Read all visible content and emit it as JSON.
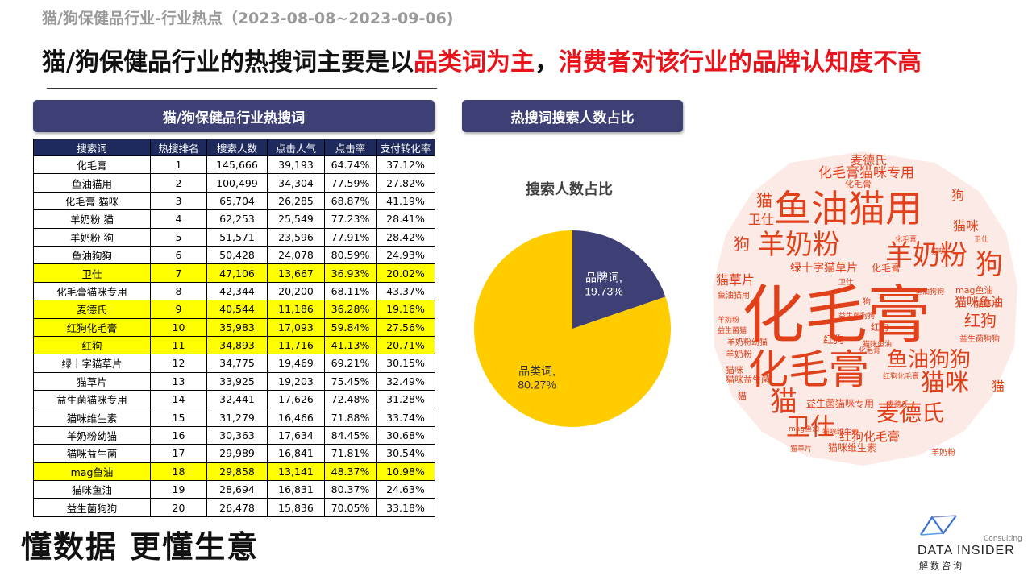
{
  "page": {
    "subtitle": "猫/狗保健品行业-行业热点（2023-08-08~2023-09-06)",
    "headline_black_1": "猫/狗保健品行业的热搜词主要是以",
    "headline_red_1": "品类词为主",
    "headline_black_2": "，",
    "headline_red_2": "消费者对该行业的品牌认知度不高",
    "slogan": "懂数据 更懂生意"
  },
  "logo": {
    "consulting": "Consulting",
    "name": "DATA INSIDER",
    "cn": "解数咨询"
  },
  "colors": {
    "panel_header": "#3d3f75",
    "table_header": "#1f2a5c",
    "highlight": "#ffff00",
    "accent_red": "#e8141c",
    "pie_brand": "#3d3f75",
    "pie_category": "#ffcc00",
    "cloud_text": "#e0401a",
    "cloud_bg": "#fbeae6"
  },
  "left_panel": {
    "title": "猫/狗保健品行业热搜词",
    "columns": [
      "搜索词",
      "热搜排名",
      "搜索人数",
      "点击人气",
      "点击率",
      "支付转化率"
    ],
    "rows": [
      {
        "term": "化毛膏",
        "rank": "1",
        "searchers": "145,666",
        "click_pop": "39,193",
        "ctr": "64.74%",
        "conv": "37.12%",
        "highlight": false
      },
      {
        "term": "鱼油猫用",
        "rank": "2",
        "searchers": "100,499",
        "click_pop": "34,304",
        "ctr": "77.59%",
        "conv": "27.82%",
        "highlight": false
      },
      {
        "term": "化毛膏 猫咪",
        "rank": "3",
        "searchers": "65,704",
        "click_pop": "26,285",
        "ctr": "68.87%",
        "conv": "41.19%",
        "highlight": false
      },
      {
        "term": "羊奶粉 猫",
        "rank": "4",
        "searchers": "62,253",
        "click_pop": "25,549",
        "ctr": "77.23%",
        "conv": "28.41%",
        "highlight": false
      },
      {
        "term": "羊奶粉 狗",
        "rank": "5",
        "searchers": "51,571",
        "click_pop": "23,596",
        "ctr": "77.91%",
        "conv": "28.42%",
        "highlight": false
      },
      {
        "term": "鱼油狗狗",
        "rank": "6",
        "searchers": "50,428",
        "click_pop": "24,078",
        "ctr": "80.59%",
        "conv": "24.93%",
        "highlight": false
      },
      {
        "term": "卫仕",
        "rank": "7",
        "searchers": "47,106",
        "click_pop": "13,667",
        "ctr": "36.93%",
        "conv": "20.02%",
        "highlight": true
      },
      {
        "term": "化毛膏猫咪专用",
        "rank": "8",
        "searchers": "42,344",
        "click_pop": "20,200",
        "ctr": "68.11%",
        "conv": "43.37%",
        "highlight": false
      },
      {
        "term": "麦德氏",
        "rank": "9",
        "searchers": "40,544",
        "click_pop": "11,186",
        "ctr": "36.28%",
        "conv": "19.16%",
        "highlight": true
      },
      {
        "term": "红狗化毛膏",
        "rank": "10",
        "searchers": "35,983",
        "click_pop": "17,093",
        "ctr": "59.84%",
        "conv": "27.56%",
        "highlight": true
      },
      {
        "term": "红狗",
        "rank": "11",
        "searchers": "34,893",
        "click_pop": "11,716",
        "ctr": "41.13%",
        "conv": "20.71%",
        "highlight": true
      },
      {
        "term": "绿十字猫草片",
        "rank": "12",
        "searchers": "34,775",
        "click_pop": "19,469",
        "ctr": "69.21%",
        "conv": "30.15%",
        "highlight": false
      },
      {
        "term": "猫草片",
        "rank": "13",
        "searchers": "33,925",
        "click_pop": "19,203",
        "ctr": "75.45%",
        "conv": "32.49%",
        "highlight": false
      },
      {
        "term": "益生菌猫咪专用",
        "rank": "14",
        "searchers": "32,441",
        "click_pop": "17,626",
        "ctr": "72.48%",
        "conv": "31.28%",
        "highlight": false
      },
      {
        "term": "猫咪维生素",
        "rank": "15",
        "searchers": "31,279",
        "click_pop": "16,466",
        "ctr": "71.88%",
        "conv": "33.74%",
        "highlight": false
      },
      {
        "term": "羊奶粉幼猫",
        "rank": "16",
        "searchers": "30,363",
        "click_pop": "17,634",
        "ctr": "84.45%",
        "conv": "30.68%",
        "highlight": false
      },
      {
        "term": "猫咪益生菌",
        "rank": "17",
        "searchers": "29,989",
        "click_pop": "16,841",
        "ctr": "71.81%",
        "conv": "30.54%",
        "highlight": false
      },
      {
        "term": "mag鱼油",
        "rank": "18",
        "searchers": "29,858",
        "click_pop": "13,141",
        "ctr": "48.37%",
        "conv": "10.98%",
        "highlight": true
      },
      {
        "term": "猫咪鱼油",
        "rank": "19",
        "searchers": "28,694",
        "click_pop": "16,831",
        "ctr": "80.37%",
        "conv": "24.63%",
        "highlight": false
      },
      {
        "term": "益生菌狗狗",
        "rank": "20",
        "searchers": "26,478",
        "click_pop": "15,836",
        "ctr": "70.05%",
        "conv": "33.18%",
        "highlight": false
      }
    ]
  },
  "middle_panel": {
    "title": "热搜词搜索人数占比"
  },
  "chart_data": {
    "type": "pie",
    "title": "搜索人数占比",
    "slices": [
      {
        "label": "品牌词,",
        "value": 19.73,
        "value_label": "19.73%",
        "color": "#3d3f75"
      },
      {
        "label": "品类词,",
        "value": 80.27,
        "value_label": "80.27%",
        "color": "#ffcc00"
      }
    ],
    "start_angle_deg": 0,
    "direction": "clockwise"
  },
  "word_cloud": {
    "words": [
      {
        "text": "化毛膏",
        "weight": 10
      },
      {
        "text": "鱼油猫用",
        "weight": 7
      },
      {
        "text": "化毛膏",
        "weight": 6
      },
      {
        "text": "羊奶粉",
        "weight": 5
      },
      {
        "text": "羊奶粉",
        "weight": 5
      },
      {
        "text": "鱼油狗狗",
        "weight": 4
      },
      {
        "text": "猫咪",
        "weight": 4
      },
      {
        "text": "麦德氏",
        "weight": 4
      },
      {
        "text": "卫仕",
        "weight": 4
      },
      {
        "text": "狗",
        "weight": 4
      },
      {
        "text": "猫",
        "weight": 4
      },
      {
        "text": "猫",
        "weight": 3
      },
      {
        "text": "红狗",
        "weight": 3
      },
      {
        "text": "狗",
        "weight": 3
      },
      {
        "text": "化毛膏猫咪专用",
        "weight": 2
      },
      {
        "text": "红狗化毛膏",
        "weight": 2
      },
      {
        "text": "绿十字猫草片",
        "weight": 2
      },
      {
        "text": "猫咪维生素",
        "weight": 2
      },
      {
        "text": "益生菌猫咪专用",
        "weight": 2
      },
      {
        "text": "化毛膏",
        "weight": 2
      },
      {
        "text": "猫草片",
        "weight": 2
      },
      {
        "text": "麦德氏",
        "weight": 2
      },
      {
        "text": "猫咪鱼油",
        "weight": 2
      },
      {
        "text": "卫仕",
        "weight": 2
      },
      {
        "text": "猫",
        "weight": 2
      },
      {
        "text": "狗",
        "weight": 2
      },
      {
        "text": "猫咪",
        "weight": 2
      },
      {
        "text": "红狗",
        "weight": 2
      },
      {
        "text": "mag鱼油",
        "weight": 1
      },
      {
        "text": "益生菌狗狗",
        "weight": 1
      },
      {
        "text": "羊奶粉",
        "weight": 1
      },
      {
        "text": "猫草片",
        "weight": 1
      },
      {
        "text": "鱼油猫用",
        "weight": 1
      },
      {
        "text": "羊奶粉幼猫",
        "weight": 1
      },
      {
        "text": "益生菌猫",
        "weight": 1
      },
      {
        "text": "猫咪益生菌",
        "weight": 1
      },
      {
        "text": "猫咪",
        "weight": 1
      },
      {
        "text": "化毛膏",
        "weight": 1
      },
      {
        "text": "化毛膏",
        "weight": 1
      },
      {
        "text": "红狗化毛膏",
        "weight": 1
      },
      {
        "text": "猫咪维生素",
        "weight": 1
      },
      {
        "text": "麦德氏",
        "weight": 1
      },
      {
        "text": "卫仕",
        "weight": 1
      },
      {
        "text": "mag鱼油",
        "weight": 1
      },
      {
        "text": "羊奶粉",
        "weight": 1
      },
      {
        "text": "猫草片",
        "weight": 1
      },
      {
        "text": "鱼油狗狗",
        "weight": 1
      },
      {
        "text": "猫咪",
        "weight": 1
      },
      {
        "text": "红狗",
        "weight": 1
      },
      {
        "text": "狗",
        "weight": 1
      },
      {
        "text": "卫仕",
        "weight": 1
      },
      {
        "text": "猫咪鱼油",
        "weight": 1
      },
      {
        "text": "羊奶粉",
        "weight": 1
      },
      {
        "text": "化毛膏",
        "weight": 1
      },
      {
        "text": "猫",
        "weight": 1
      },
      {
        "text": "益生菌狗狗",
        "weight": 1
      }
    ]
  }
}
